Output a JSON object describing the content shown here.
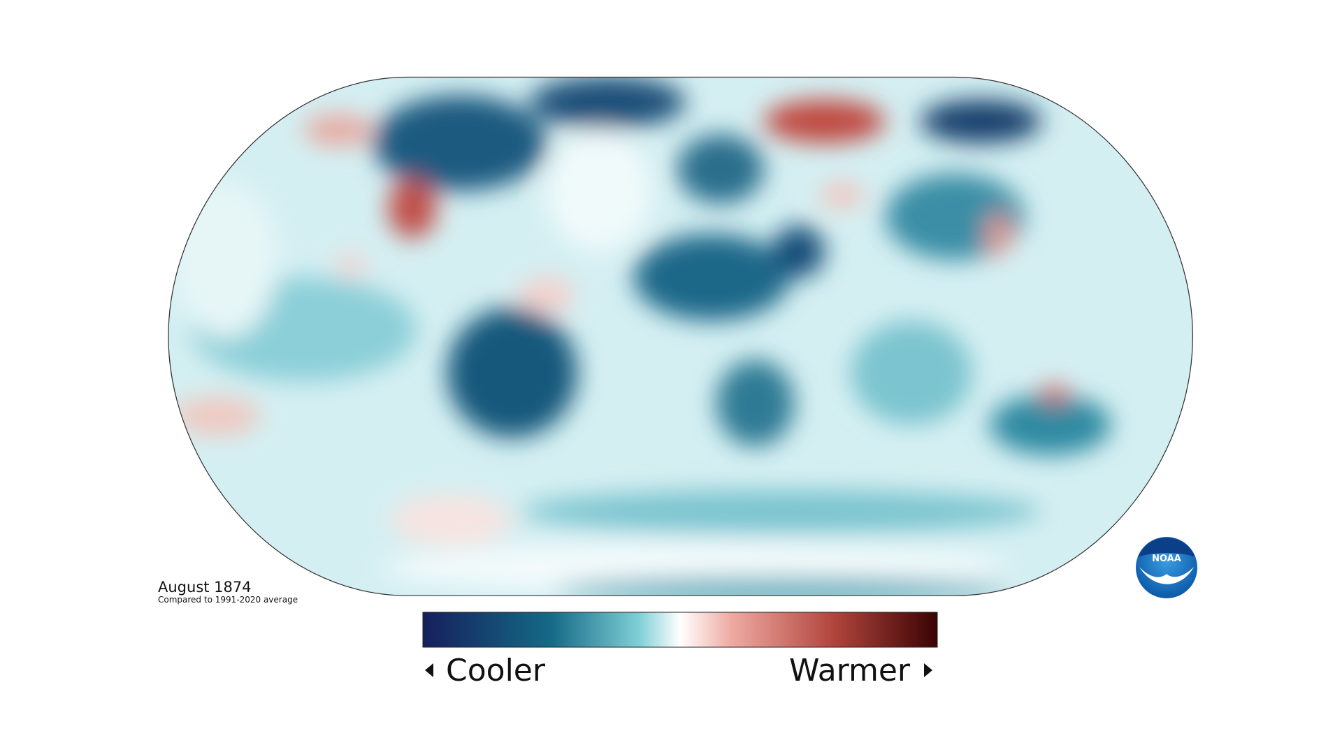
{
  "title": "August 1874",
  "subtitle": "Compared to 1991-2020 average",
  "legend": {
    "low_label": "Cooler",
    "high_label": "Warmer"
  },
  "logo": {
    "text": "NOAA"
  }
}
